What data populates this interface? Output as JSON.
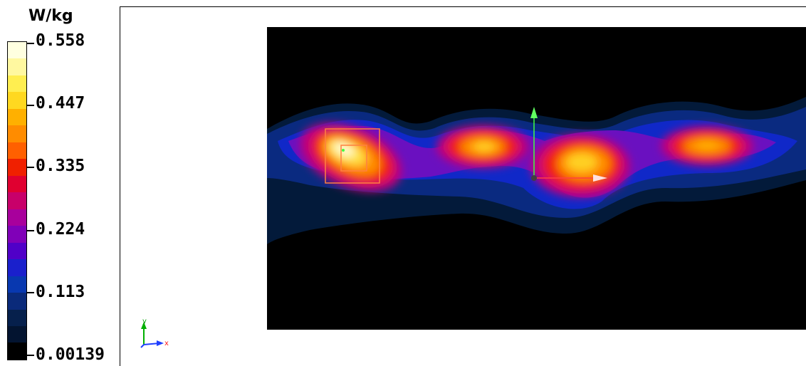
{
  "chart_data": {
    "type": "heatmap",
    "unit": "W/kg",
    "colorbar": {
      "ticks": [
        "0.558",
        "0.447",
        "0.335",
        "0.224",
        "0.113",
        "0.00139"
      ],
      "min": 0.00139,
      "max": 0.558,
      "colors": [
        "#ffffe0",
        "#fff8a0",
        "#ffee50",
        "#ffd820",
        "#ffb000",
        "#ff8c00",
        "#ff6000",
        "#f02000",
        "#e00030",
        "#c8006a",
        "#a8009c",
        "#8000b8",
        "#5000c8",
        "#1a20cc",
        "#0838b0",
        "#0a2a7a",
        "#06204c",
        "#031430",
        "#000000"
      ]
    },
    "hotspots": [
      {
        "x": "left",
        "peak": 0.558
      },
      {
        "x": "center-left",
        "peak": 0.447
      },
      {
        "x": "center",
        "peak": 0.5
      },
      {
        "x": "right",
        "peak": 0.447
      }
    ],
    "axis_triad": {
      "y_label": "y",
      "x_label": "x"
    }
  }
}
